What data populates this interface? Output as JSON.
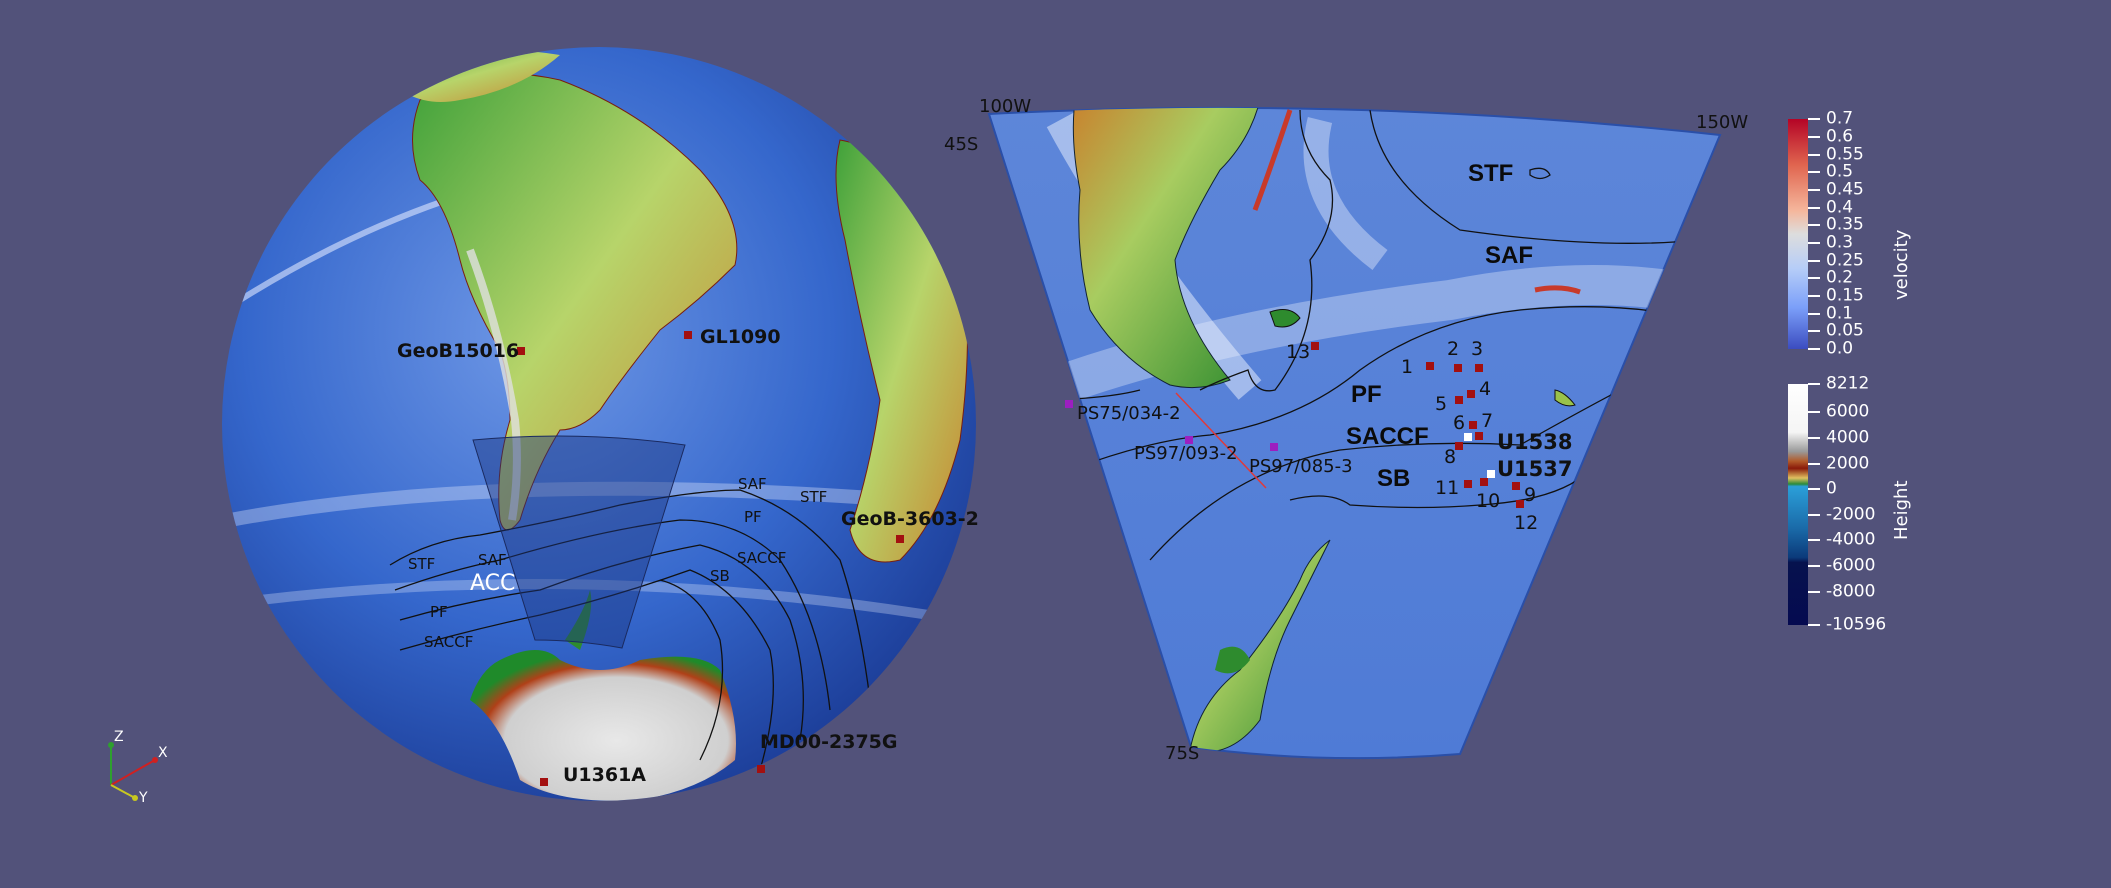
{
  "colors": {
    "background": "#52527a",
    "ocean": "#2f62c9",
    "land_low": "#2e8b2e",
    "land_high": "#c9c9c9",
    "site_marker": "#a31010",
    "ps_marker": "#9c1fc0",
    "front_line": "#111111"
  },
  "globe": {
    "site_labels": [
      "GeoB15016",
      "GL1090",
      "GeoB-3603-2",
      "MD00-2375G",
      "U1361A"
    ],
    "front_labels": {
      "east": [
        "SAF",
        "STF",
        "PF",
        "SACCF",
        "SB"
      ],
      "west": [
        "STF",
        "SAF",
        "PF",
        "SACCF"
      ]
    },
    "current_label": "ACC"
  },
  "sector": {
    "corner_labels": {
      "top_left_lon": "100W",
      "top_left_lat": "45S",
      "top_right_lon": "150W",
      "bottom_lat": "75S"
    },
    "front_labels": [
      "STF",
      "SAF",
      "PF",
      "SACCF",
      "SB"
    ],
    "site_labels": [
      "U1538",
      "U1537"
    ],
    "ps_labels": [
      "PS75/034-2",
      "PS97/093-2",
      "PS97/085-3"
    ],
    "site_numbers": [
      "1",
      "2",
      "3",
      "4",
      "5",
      "6",
      "7",
      "8",
      "9",
      "10",
      "11",
      "12",
      "13"
    ]
  },
  "colorbars": {
    "velocity": {
      "title": "velocity",
      "ticks": [
        "0.7",
        "0.6",
        "0.55",
        "0.5",
        "0.45",
        "0.4",
        "0.35",
        "0.3",
        "0.25",
        "0.2",
        "0.15",
        "0.1",
        "0.05",
        "0.0"
      ],
      "range": [
        0.0,
        0.7
      ]
    },
    "height": {
      "title": "Height",
      "ticks": [
        "8212",
        "6000",
        "4000",
        "2000",
        "0",
        "-2000",
        "-4000",
        "-6000",
        "-8000",
        "-10596"
      ],
      "range": [
        -10596,
        8212
      ]
    }
  },
  "axes_triad": {
    "x": "X",
    "y": "Y",
    "z": "Z"
  }
}
